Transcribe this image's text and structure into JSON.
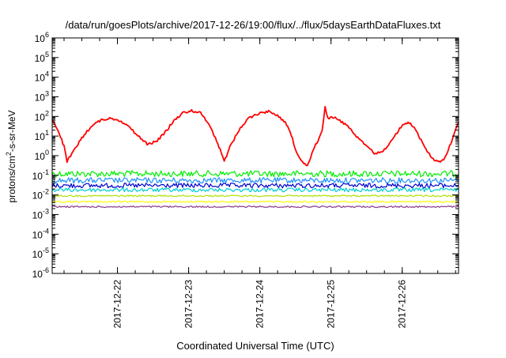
{
  "chart_data": {
    "type": "line",
    "title": "/data/run/goesPlots/archive/2017-12-26/19:00/flux/../flux/5daysEarthDataFluxes.txt",
    "xlabel": "Coordinated Universal Time (UTC)",
    "ylabel": "protons/cm²-s-sr-MeV",
    "yscale": "log",
    "ylim": [
      1e-06,
      1000000.0
    ],
    "xlim": [
      "2017-12-21 02:00",
      "2017-12-26 19:00"
    ],
    "x_ticks": [
      "2017-12-22",
      "2017-12-23",
      "2017-12-24",
      "2017-12-25",
      "2017-12-26"
    ],
    "y_ticks": [
      {
        "base": "10",
        "exp": "-6"
      },
      {
        "base": "10",
        "exp": "-5"
      },
      {
        "base": "10",
        "exp": "-4"
      },
      {
        "base": "10",
        "exp": "-3"
      },
      {
        "base": "10",
        "exp": "-2"
      },
      {
        "base": "10",
        "exp": "-1"
      },
      {
        "base": "10",
        "exp": "0"
      },
      {
        "base": "10",
        "exp": "1"
      },
      {
        "base": "10",
        "exp": "2"
      },
      {
        "base": "10",
        "exp": "3"
      },
      {
        "base": "10",
        "exp": "4"
      },
      {
        "base": "10",
        "exp": "5"
      },
      {
        "base": "10",
        "exp": "6"
      }
    ],
    "grid": false,
    "legend": "none",
    "series": [
      {
        "color": "#ff0000",
        "points": [
          [
            "2017-12-21 02:00",
            70
          ],
          [
            "2017-12-21 04:00",
            20
          ],
          [
            "2017-12-21 06:00",
            3
          ],
          [
            "2017-12-21 07:00",
            0.5
          ],
          [
            "2017-12-21 09:00",
            1.5
          ],
          [
            "2017-12-21 12:00",
            8
          ],
          [
            "2017-12-21 15:00",
            30
          ],
          [
            "2017-12-21 18:00",
            60
          ],
          [
            "2017-12-21 21:00",
            80
          ],
          [
            "2017-12-22 00:00",
            70
          ],
          [
            "2017-12-22 03:00",
            40
          ],
          [
            "2017-12-22 07:00",
            10
          ],
          [
            "2017-12-22 10:00",
            4
          ],
          [
            "2017-12-22 13:00",
            5
          ],
          [
            "2017-12-22 16:00",
            15
          ],
          [
            "2017-12-22 19:00",
            60
          ],
          [
            "2017-12-22 22:00",
            150
          ],
          [
            "2017-12-23 01:00",
            200
          ],
          [
            "2017-12-23 04:00",
            150
          ],
          [
            "2017-12-23 07:00",
            40
          ],
          [
            "2017-12-23 09:00",
            8
          ],
          [
            "2017-12-23 11:00",
            1.5
          ],
          [
            "2017-12-23 12:00",
            0.5
          ],
          [
            "2017-12-23 14:00",
            3
          ],
          [
            "2017-12-23 17:00",
            20
          ],
          [
            "2017-12-23 20:00",
            80
          ],
          [
            "2017-12-24 00:00",
            150
          ],
          [
            "2017-12-24 03:00",
            180
          ],
          [
            "2017-12-24 06:00",
            120
          ],
          [
            "2017-12-24 09:00",
            40
          ],
          [
            "2017-12-24 11:00",
            8
          ],
          [
            "2017-12-24 12:00",
            2
          ],
          [
            "2017-12-24 14:00",
            0.6
          ],
          [
            "2017-12-24 16:00",
            0.3
          ],
          [
            "2017-12-24 18:00",
            2
          ],
          [
            "2017-12-24 20:00",
            8
          ],
          [
            "2017-12-24 21:00",
            20
          ],
          [
            "2017-12-24 22:00",
            300
          ],
          [
            "2017-12-24 23:00",
            80
          ],
          [
            "2017-12-25 01:00",
            90
          ],
          [
            "2017-12-25 03:00",
            60
          ],
          [
            "2017-12-25 06:00",
            30
          ],
          [
            "2017-12-25 09:00",
            8
          ],
          [
            "2017-12-25 12:00",
            3
          ],
          [
            "2017-12-25 15:00",
            1.2
          ],
          [
            "2017-12-25 18:00",
            2
          ],
          [
            "2017-12-25 21:00",
            8
          ],
          [
            "2017-12-26 00:00",
            35
          ],
          [
            "2017-12-26 02:00",
            50
          ],
          [
            "2017-12-26 04:00",
            30
          ],
          [
            "2017-12-26 06:00",
            8
          ],
          [
            "2017-12-26 08:00",
            2
          ],
          [
            "2017-12-26 10:00",
            0.8
          ],
          [
            "2017-12-26 12:00",
            0.5
          ],
          [
            "2017-12-26 14:00",
            0.6
          ],
          [
            "2017-12-26 16:00",
            3
          ],
          [
            "2017-12-26 18:00",
            20
          ],
          [
            "2017-12-26 19:00",
            50
          ]
        ]
      },
      {
        "color": "#00ee00",
        "points": [
          [
            "2017-12-21 02:00",
            0.12
          ],
          [
            "2017-12-26 19:00",
            0.12
          ]
        ]
      },
      {
        "color": "#1e90ff",
        "points": [
          [
            "2017-12-21 02:00",
            0.055
          ],
          [
            "2017-12-26 19:00",
            0.055
          ]
        ]
      },
      {
        "color": "#0000cd",
        "points": [
          [
            "2017-12-21 02:00",
            0.03
          ],
          [
            "2017-12-26 19:00",
            0.03
          ]
        ]
      },
      {
        "color": "#00ced1",
        "points": [
          [
            "2017-12-21 02:00",
            0.018
          ],
          [
            "2017-12-26 19:00",
            0.018
          ]
        ]
      },
      {
        "color": "#b0e000",
        "points": [
          [
            "2017-12-21 02:00",
            0.009
          ],
          [
            "2017-12-26 19:00",
            0.009
          ]
        ]
      },
      {
        "color": "#ffff00",
        "points": [
          [
            "2017-12-21 02:00",
            0.0045
          ],
          [
            "2017-12-26 19:00",
            0.0045
          ]
        ]
      },
      {
        "color": "#8b3a8b",
        "points": [
          [
            "2017-12-21 02:00",
            0.0025
          ],
          [
            "2017-12-26 19:00",
            0.0025
          ]
        ]
      }
    ]
  }
}
